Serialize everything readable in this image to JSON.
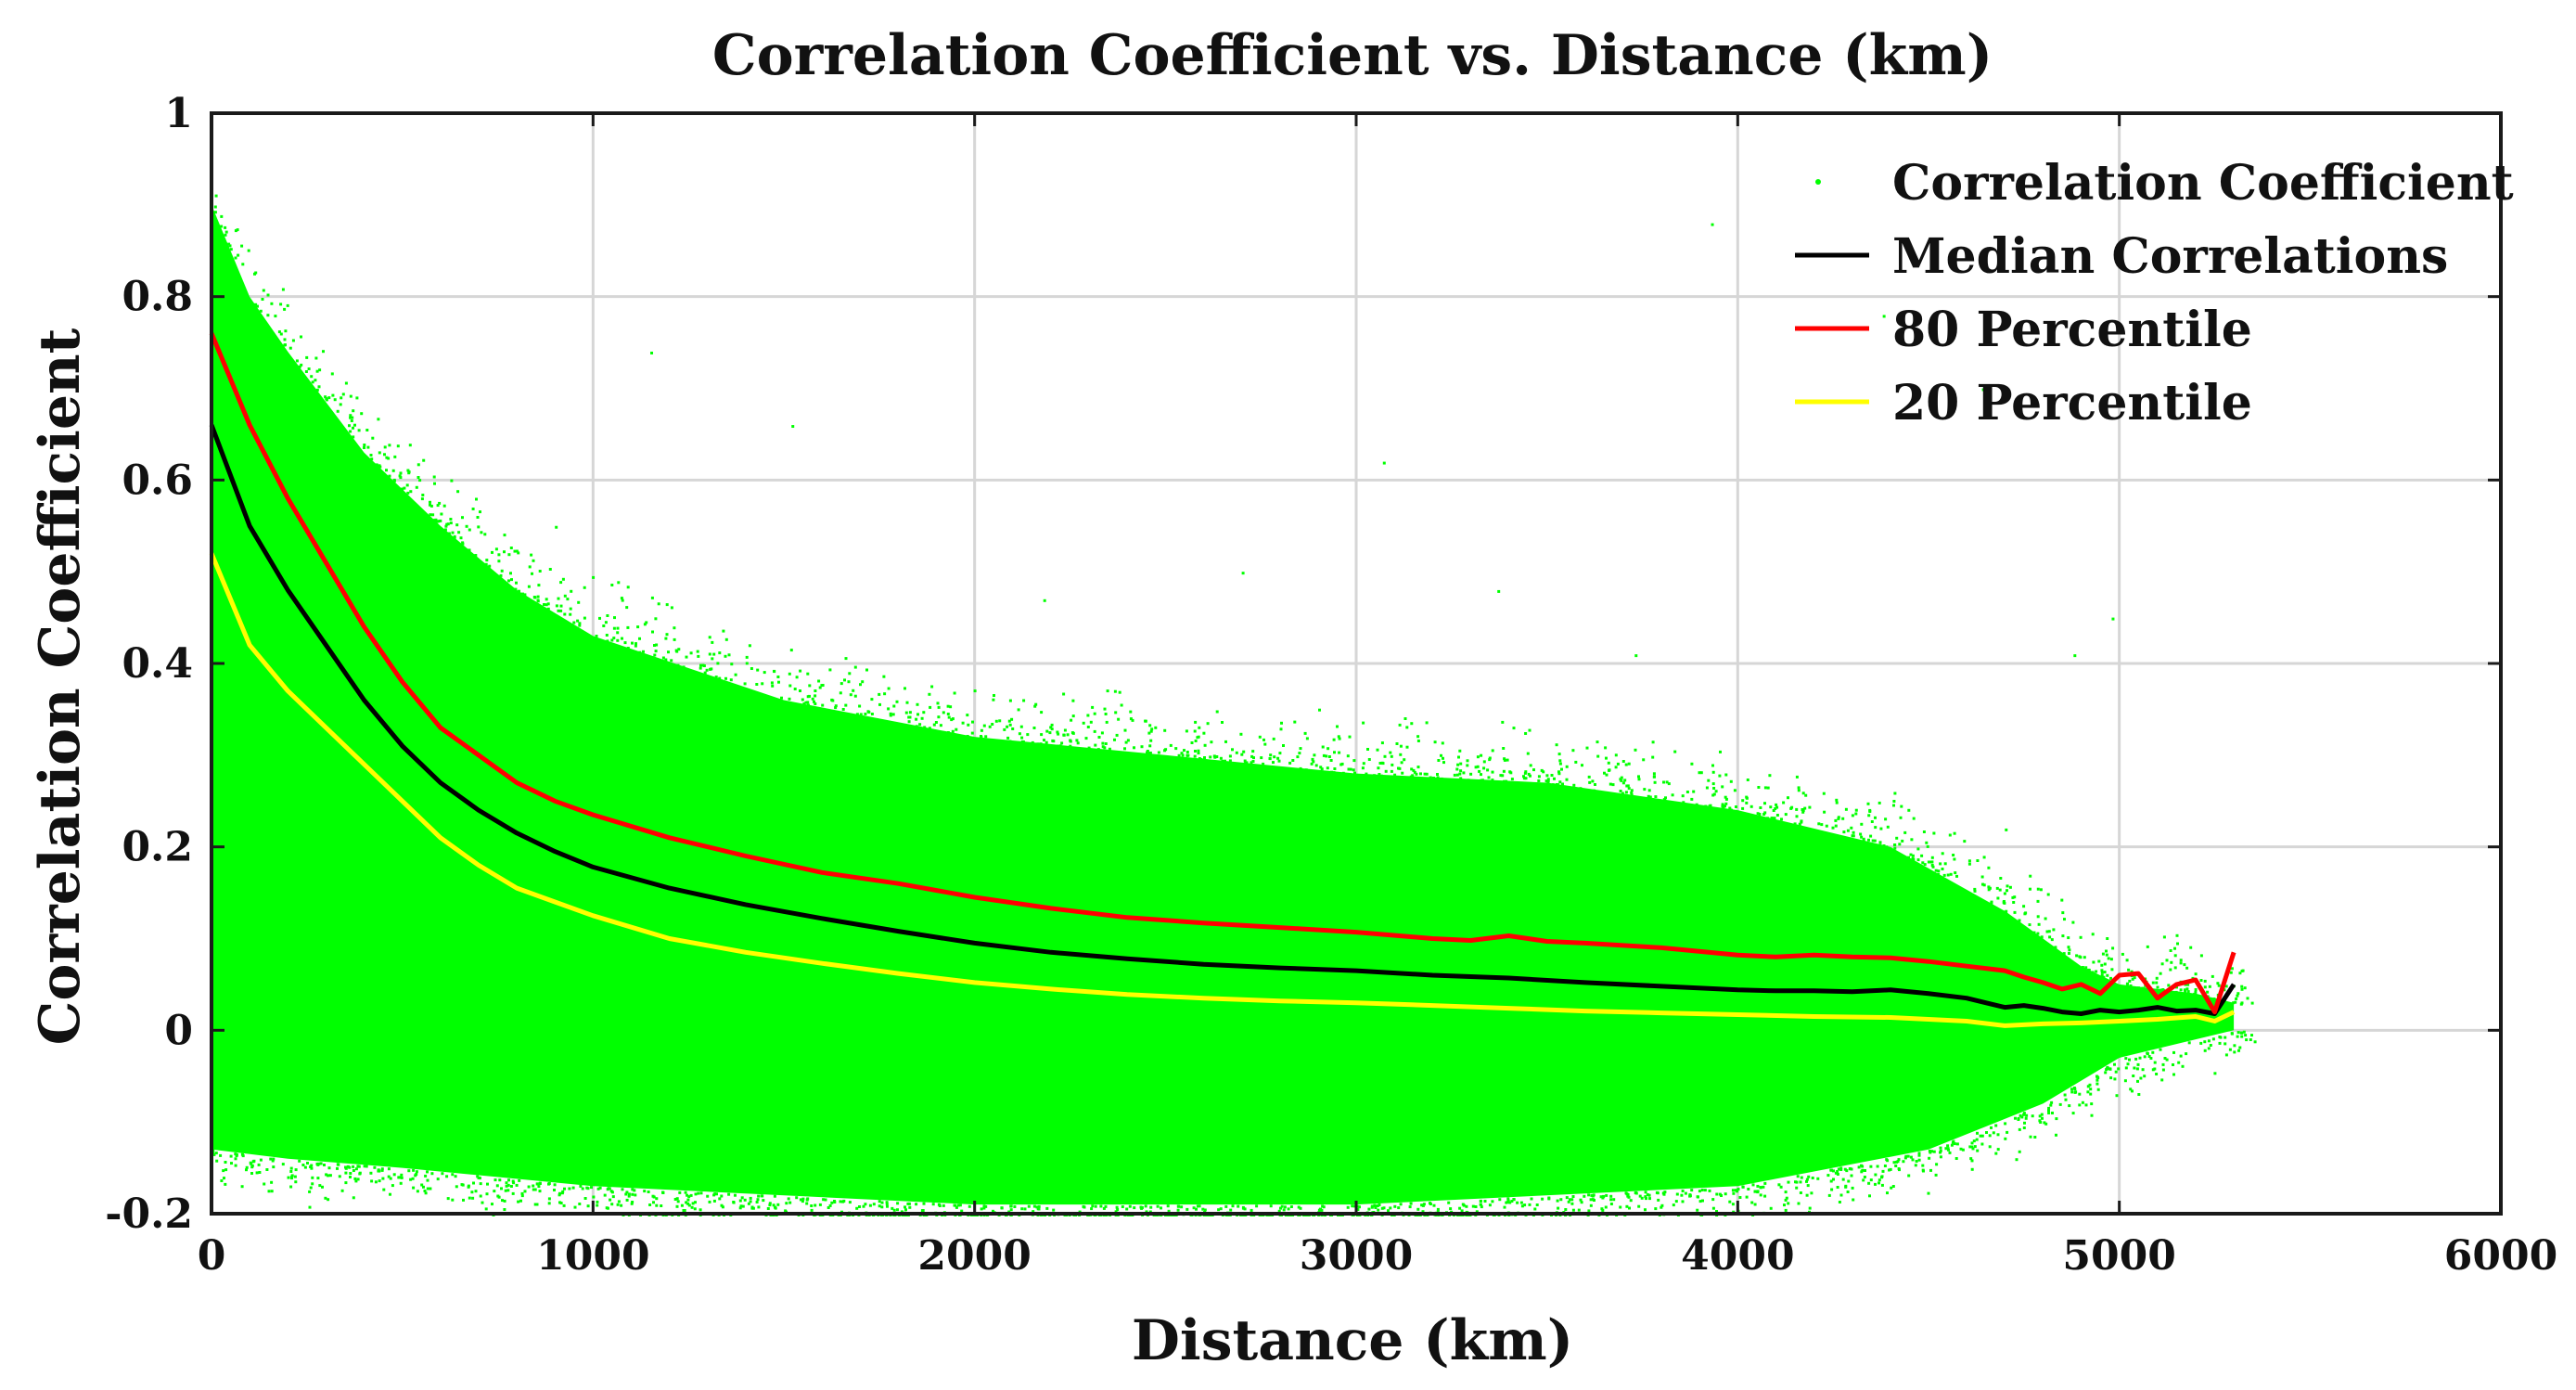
{
  "chart_data": {
    "type": "scatter",
    "title": "Correlation Coefficient vs. Distance (km)",
    "xlabel": "Distance (km)",
    "ylabel": "Correlation Coefficient",
    "xlim": [
      0,
      6000
    ],
    "ylim": [
      -0.2,
      1
    ],
    "xticks": [
      0,
      1000,
      2000,
      3000,
      4000,
      5000,
      6000
    ],
    "xtick_labels": [
      "0",
      "1000",
      "2000",
      "3000",
      "4000",
      "5000",
      "6000"
    ],
    "yticks": [
      -0.2,
      0,
      0.2,
      0.4,
      0.6,
      0.8,
      1
    ],
    "ytick_labels": [
      "-0.2",
      "0",
      "0.2",
      "0.4",
      "0.6",
      "0.8",
      "1"
    ],
    "grid": true,
    "legend_position": "top-right",
    "scatter": {
      "name": "Correlation Coefficient",
      "color": "#00ff00",
      "band_upper": {
        "x": [
          0,
          100,
          200,
          400,
          600,
          800,
          1000,
          1500,
          2000,
          2500,
          3000,
          3500,
          4000,
          4400,
          4700,
          4900,
          5000,
          5200,
          5300
        ],
        "y": [
          0.9,
          0.8,
          0.74,
          0.63,
          0.55,
          0.48,
          0.43,
          0.36,
          0.32,
          0.3,
          0.28,
          0.27,
          0.24,
          0.2,
          0.13,
          0.07,
          0.05,
          0.04,
          0.03
        ]
      },
      "band_lower": {
        "x": [
          0,
          200,
          500,
          1000,
          2000,
          3000,
          4000,
          4500,
          4800,
          5000,
          5300
        ],
        "y": [
          -0.13,
          -0.14,
          -0.15,
          -0.17,
          -0.19,
          -0.19,
          -0.17,
          -0.13,
          -0.08,
          -0.03,
          0.0
        ]
      },
      "outliers": [
        [
          900,
          0.55
        ],
        [
          1150,
          0.74
        ],
        [
          1520,
          0.66
        ],
        [
          2180,
          0.47
        ],
        [
          2700,
          0.5
        ],
        [
          3370,
          0.48
        ],
        [
          3730,
          0.41
        ],
        [
          4880,
          0.41
        ],
        [
          4980,
          0.45
        ],
        [
          4640,
          0.7
        ],
        [
          4380,
          0.78
        ],
        [
          3930,
          0.88
        ],
        [
          4700,
          0.22
        ],
        [
          5120,
          0.04
        ],
        [
          3070,
          0.62
        ]
      ]
    },
    "series": [
      {
        "name": "Median Correlations",
        "color": "#000000",
        "x": [
          0,
          100,
          200,
          300,
          400,
          500,
          600,
          700,
          800,
          900,
          1000,
          1200,
          1400,
          1600,
          1800,
          2000,
          2200,
          2400,
          2600,
          2800,
          3000,
          3200,
          3400,
          3600,
          3800,
          4000,
          4100,
          4200,
          4300,
          4400,
          4500,
          4600,
          4650,
          4700,
          4750,
          4800,
          4850,
          4900,
          4950,
          5000,
          5050,
          5100,
          5150,
          5200,
          5250,
          5300
        ],
        "y": [
          0.66,
          0.55,
          0.48,
          0.42,
          0.36,
          0.31,
          0.27,
          0.24,
          0.215,
          0.195,
          0.178,
          0.155,
          0.137,
          0.122,
          0.108,
          0.095,
          0.085,
          0.078,
          0.072,
          0.068,
          0.065,
          0.06,
          0.057,
          0.052,
          0.048,
          0.044,
          0.043,
          0.043,
          0.042,
          0.044,
          0.04,
          0.035,
          0.03,
          0.025,
          0.027,
          0.024,
          0.02,
          0.018,
          0.022,
          0.02,
          0.022,
          0.025,
          0.021,
          0.022,
          0.018,
          0.05
        ]
      },
      {
        "name": "80 Percentile",
        "color": "#ff0000",
        "x": [
          0,
          100,
          200,
          300,
          400,
          500,
          600,
          700,
          800,
          900,
          1000,
          1200,
          1400,
          1600,
          1800,
          2000,
          2200,
          2400,
          2600,
          2800,
          3000,
          3200,
          3300,
          3400,
          3500,
          3600,
          3800,
          4000,
          4100,
          4200,
          4300,
          4400,
          4500,
          4600,
          4700,
          4750,
          4800,
          4850,
          4900,
          4950,
          5000,
          5050,
          5100,
          5150,
          5200,
          5250,
          5300
        ],
        "y": [
          0.76,
          0.66,
          0.58,
          0.51,
          0.44,
          0.38,
          0.33,
          0.3,
          0.27,
          0.25,
          0.235,
          0.21,
          0.19,
          0.172,
          0.16,
          0.145,
          0.133,
          0.123,
          0.117,
          0.112,
          0.107,
          0.1,
          0.098,
          0.103,
          0.097,
          0.095,
          0.09,
          0.082,
          0.08,
          0.082,
          0.08,
          0.079,
          0.075,
          0.07,
          0.065,
          0.058,
          0.052,
          0.045,
          0.05,
          0.04,
          0.06,
          0.062,
          0.035,
          0.05,
          0.055,
          0.02,
          0.085
        ]
      },
      {
        "name": "20 Percentile",
        "color": "#ffff00",
        "x": [
          0,
          100,
          200,
          300,
          400,
          500,
          600,
          700,
          800,
          900,
          1000,
          1200,
          1400,
          1600,
          1800,
          2000,
          2200,
          2400,
          2600,
          2800,
          3000,
          3200,
          3400,
          3600,
          3800,
          4000,
          4200,
          4400,
          4600,
          4700,
          4800,
          4900,
          5000,
          5100,
          5200,
          5250,
          5300
        ],
        "y": [
          0.52,
          0.42,
          0.37,
          0.33,
          0.29,
          0.25,
          0.21,
          0.18,
          0.155,
          0.14,
          0.125,
          0.1,
          0.085,
          0.073,
          0.062,
          0.052,
          0.045,
          0.039,
          0.035,
          0.032,
          0.03,
          0.027,
          0.024,
          0.021,
          0.019,
          0.017,
          0.015,
          0.014,
          0.01,
          0.005,
          0.007,
          0.008,
          0.01,
          0.012,
          0.015,
          0.01,
          0.02
        ]
      }
    ]
  }
}
